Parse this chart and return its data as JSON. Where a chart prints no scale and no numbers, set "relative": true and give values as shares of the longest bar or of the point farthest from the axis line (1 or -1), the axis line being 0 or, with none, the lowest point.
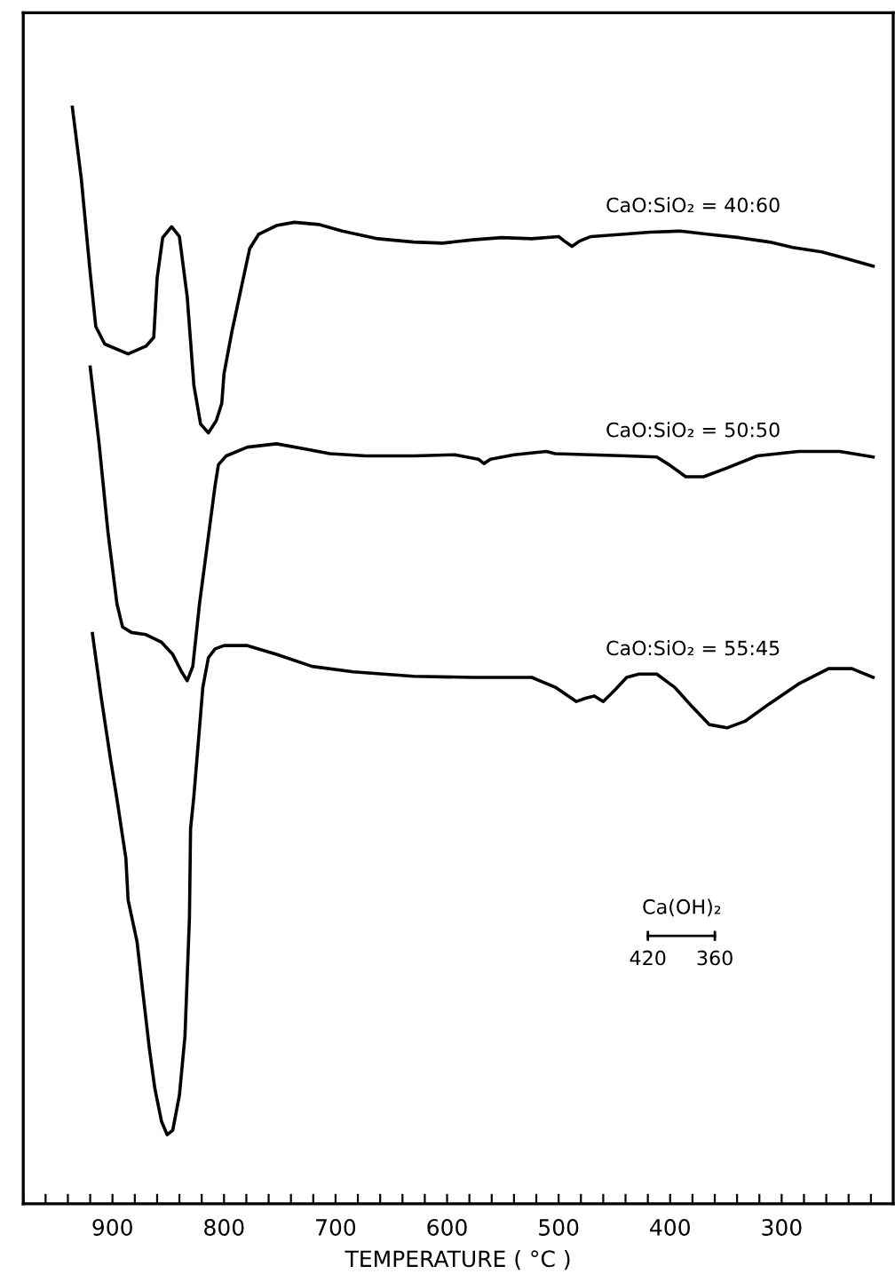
{
  "chart_data": {
    "type": "line",
    "relative": true,
    "xlabel": "TEMPERATURE ( °C )",
    "xlim": [
      980,
      200
    ],
    "xticks": [
      {
        "value": 980,
        "label": null
      },
      {
        "value": 960,
        "label": null
      },
      {
        "value": 940,
        "label": null
      },
      {
        "value": 920,
        "label": null
      },
      900,
      {
        "value": 880,
        "label": null
      },
      {
        "value": 860,
        "label": null
      },
      {
        "value": 840,
        "label": null
      },
      {
        "value": 820,
        "label": null
      },
      800,
      {
        "value": 780,
        "label": null
      },
      {
        "value": 760,
        "label": null
      },
      {
        "value": 740,
        "label": null
      },
      {
        "value": 720,
        "label": null
      },
      700,
      {
        "value": 680,
        "label": null
      },
      {
        "value": 660,
        "label": null
      },
      {
        "value": 640,
        "label": null
      },
      {
        "value": 620,
        "label": null
      },
      600,
      {
        "value": 580,
        "label": null
      },
      {
        "value": 560,
        "label": null
      },
      {
        "value": 540,
        "label": null
      },
      {
        "value": 520,
        "label": null
      },
      500,
      {
        "value": 480,
        "label": null
      },
      {
        "value": 460,
        "label": null
      },
      {
        "value": 440,
        "label": null
      },
      {
        "value": 420,
        "label": null
      },
      400,
      {
        "value": 380,
        "label": null
      },
      {
        "value": 360,
        "label": null
      },
      {
        "value": 340,
        "label": null
      },
      {
        "value": 320,
        "label": null
      },
      300,
      {
        "value": 280,
        "label": null
      },
      {
        "value": 260,
        "label": null
      },
      {
        "value": 240,
        "label": null
      },
      {
        "value": 220,
        "label": null
      }
    ],
    "tick_labels": "x",
    "grid": false,
    "marker": "none",
    "line_style": "solid",
    "series": [
      {
        "name": "CaO:SiO₂ = 40:60",
        "color": "#000000",
        "x": [
          936,
          928,
          920,
          915,
          907,
          886,
          870,
          863,
          860,
          855,
          847,
          840,
          833,
          827,
          821,
          814,
          807,
          802,
          800,
          793,
          785,
          777,
          769,
          753,
          737,
          715,
          694,
          662,
          630,
          604,
          577,
          551,
          524,
          500,
          495,
          488,
          481,
          471,
          444,
          418,
          391,
          365,
          338,
          311,
          290,
          264,
          242,
          218
        ],
        "values": [
          1.0,
          0.935,
          0.849,
          0.8,
          0.784,
          0.775,
          0.782,
          0.79,
          0.844,
          0.881,
          0.891,
          0.882,
          0.827,
          0.746,
          0.711,
          0.703,
          0.714,
          0.73,
          0.757,
          0.795,
          0.833,
          0.871,
          0.884,
          0.892,
          0.895,
          0.893,
          0.887,
          0.88,
          0.877,
          0.876,
          0.879,
          0.881,
          0.88,
          0.882,
          0.878,
          0.873,
          0.878,
          0.882,
          0.884,
          0.886,
          0.887,
          0.884,
          0.881,
          0.877,
          0.872,
          0.868,
          0.862,
          0.855
        ]
      },
      {
        "name": "CaO:SiO₂ = 50:50",
        "color": "#000000",
        "x": [
          920,
          912,
          904,
          896,
          891,
          883,
          870,
          856,
          846,
          838,
          833,
          828,
          822,
          815,
          808,
          805,
          798,
          779,
          753,
          726,
          705,
          673,
          630,
          593,
          572,
          567,
          561,
          540,
          511,
          503,
          471,
          439,
          412,
          401,
          386,
          370,
          349,
          322,
          285,
          248,
          218
        ],
        "values": [
          0.763,
          0.693,
          0.612,
          0.547,
          0.526,
          0.521,
          0.519,
          0.512,
          0.501,
          0.485,
          0.477,
          0.49,
          0.547,
          0.601,
          0.655,
          0.674,
          0.682,
          0.69,
          0.693,
          0.688,
          0.684,
          0.682,
          0.682,
          0.683,
          0.679,
          0.675,
          0.679,
          0.683,
          0.686,
          0.684,
          0.683,
          0.682,
          0.681,
          0.674,
          0.663,
          0.663,
          0.671,
          0.682,
          0.686,
          0.686,
          0.681
        ]
      },
      {
        "name": "CaO:SiO₂ = 55:45",
        "color": "#000000",
        "x": [
          918,
          910,
          902,
          896,
          888,
          886,
          878,
          872,
          867,
          862,
          856,
          851,
          846,
          840,
          835,
          831,
          830,
          827,
          819,
          814,
          808,
          800,
          779,
          753,
          721,
          684,
          630,
          577,
          524,
          503,
          484,
          476,
          468,
          460,
          449,
          439,
          428,
          412,
          396,
          380,
          365,
          349,
          333,
          311,
          285,
          258,
          237,
          218
        ],
        "values": [
          0.52,
          0.461,
          0.407,
          0.369,
          0.315,
          0.277,
          0.239,
          0.186,
          0.142,
          0.105,
          0.075,
          0.063,
          0.067,
          0.099,
          0.153,
          0.261,
          0.342,
          0.372,
          0.471,
          0.498,
          0.506,
          0.509,
          0.509,
          0.501,
          0.49,
          0.485,
          0.481,
          0.48,
          0.48,
          0.471,
          0.458,
          0.461,
          0.463,
          0.458,
          0.469,
          0.48,
          0.483,
          0.483,
          0.471,
          0.453,
          0.437,
          0.434,
          0.44,
          0.456,
          0.474,
          0.488,
          0.488,
          0.48
        ]
      }
    ],
    "annotations": [
      "Ca(OH)₂",
      "420",
      "360"
    ]
  }
}
